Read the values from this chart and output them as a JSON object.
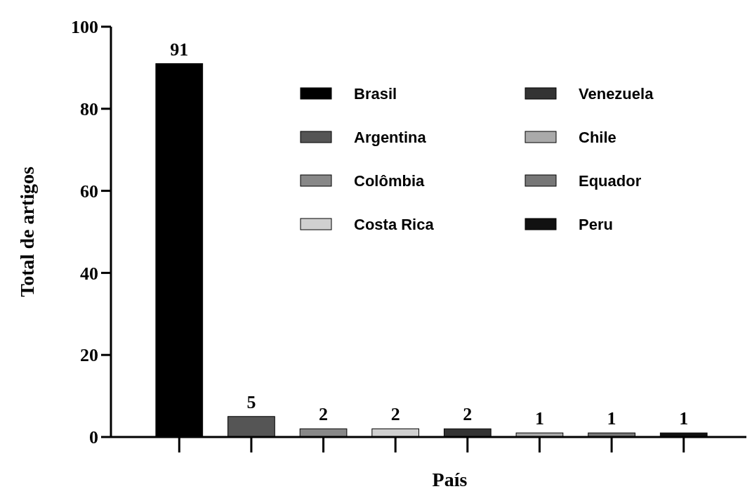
{
  "chart_data": {
    "type": "bar",
    "xlabel": "País",
    "ylabel": "Total de artigos",
    "categories": [
      null,
      null,
      null,
      null,
      null,
      null,
      null,
      null
    ],
    "stacked": true,
    "ylim": [
      0,
      100
    ],
    "yticks": [
      0,
      20,
      40,
      60,
      80,
      100
    ],
    "data_labels": true,
    "legend": "top right",
    "grid": false,
    "series": [
      {
        "name": "Brasil",
        "color": "#000000",
        "values": [
          91,
          null,
          null,
          null,
          null,
          null,
          null,
          null
        ]
      },
      {
        "name": "Argentina",
        "color": "#555555",
        "values": [
          null,
          5,
          null,
          null,
          null,
          null,
          null,
          null
        ]
      },
      {
        "name": "Colômbia",
        "color": "#888888",
        "values": [
          null,
          null,
          2,
          null,
          null,
          null,
          null,
          null
        ]
      },
      {
        "name": "Costa Rica",
        "color": "#d0d0d0",
        "values": [
          null,
          null,
          null,
          2,
          null,
          null,
          null,
          null
        ]
      },
      {
        "name": "Venezuela",
        "color": "#333333",
        "values": [
          null,
          null,
          null,
          null,
          2,
          null,
          null,
          null
        ]
      },
      {
        "name": "Chile",
        "color": "#aaaaaa",
        "values": [
          null,
          null,
          null,
          null,
          null,
          1,
          null,
          null
        ]
      },
      {
        "name": "Equador",
        "color": "#777777",
        "values": [
          null,
          null,
          null,
          null,
          null,
          null,
          1,
          null
        ]
      },
      {
        "name": "Peru",
        "color": "#111111",
        "values": [
          null,
          null,
          null,
          null,
          null,
          null,
          null,
          1
        ]
      }
    ]
  }
}
